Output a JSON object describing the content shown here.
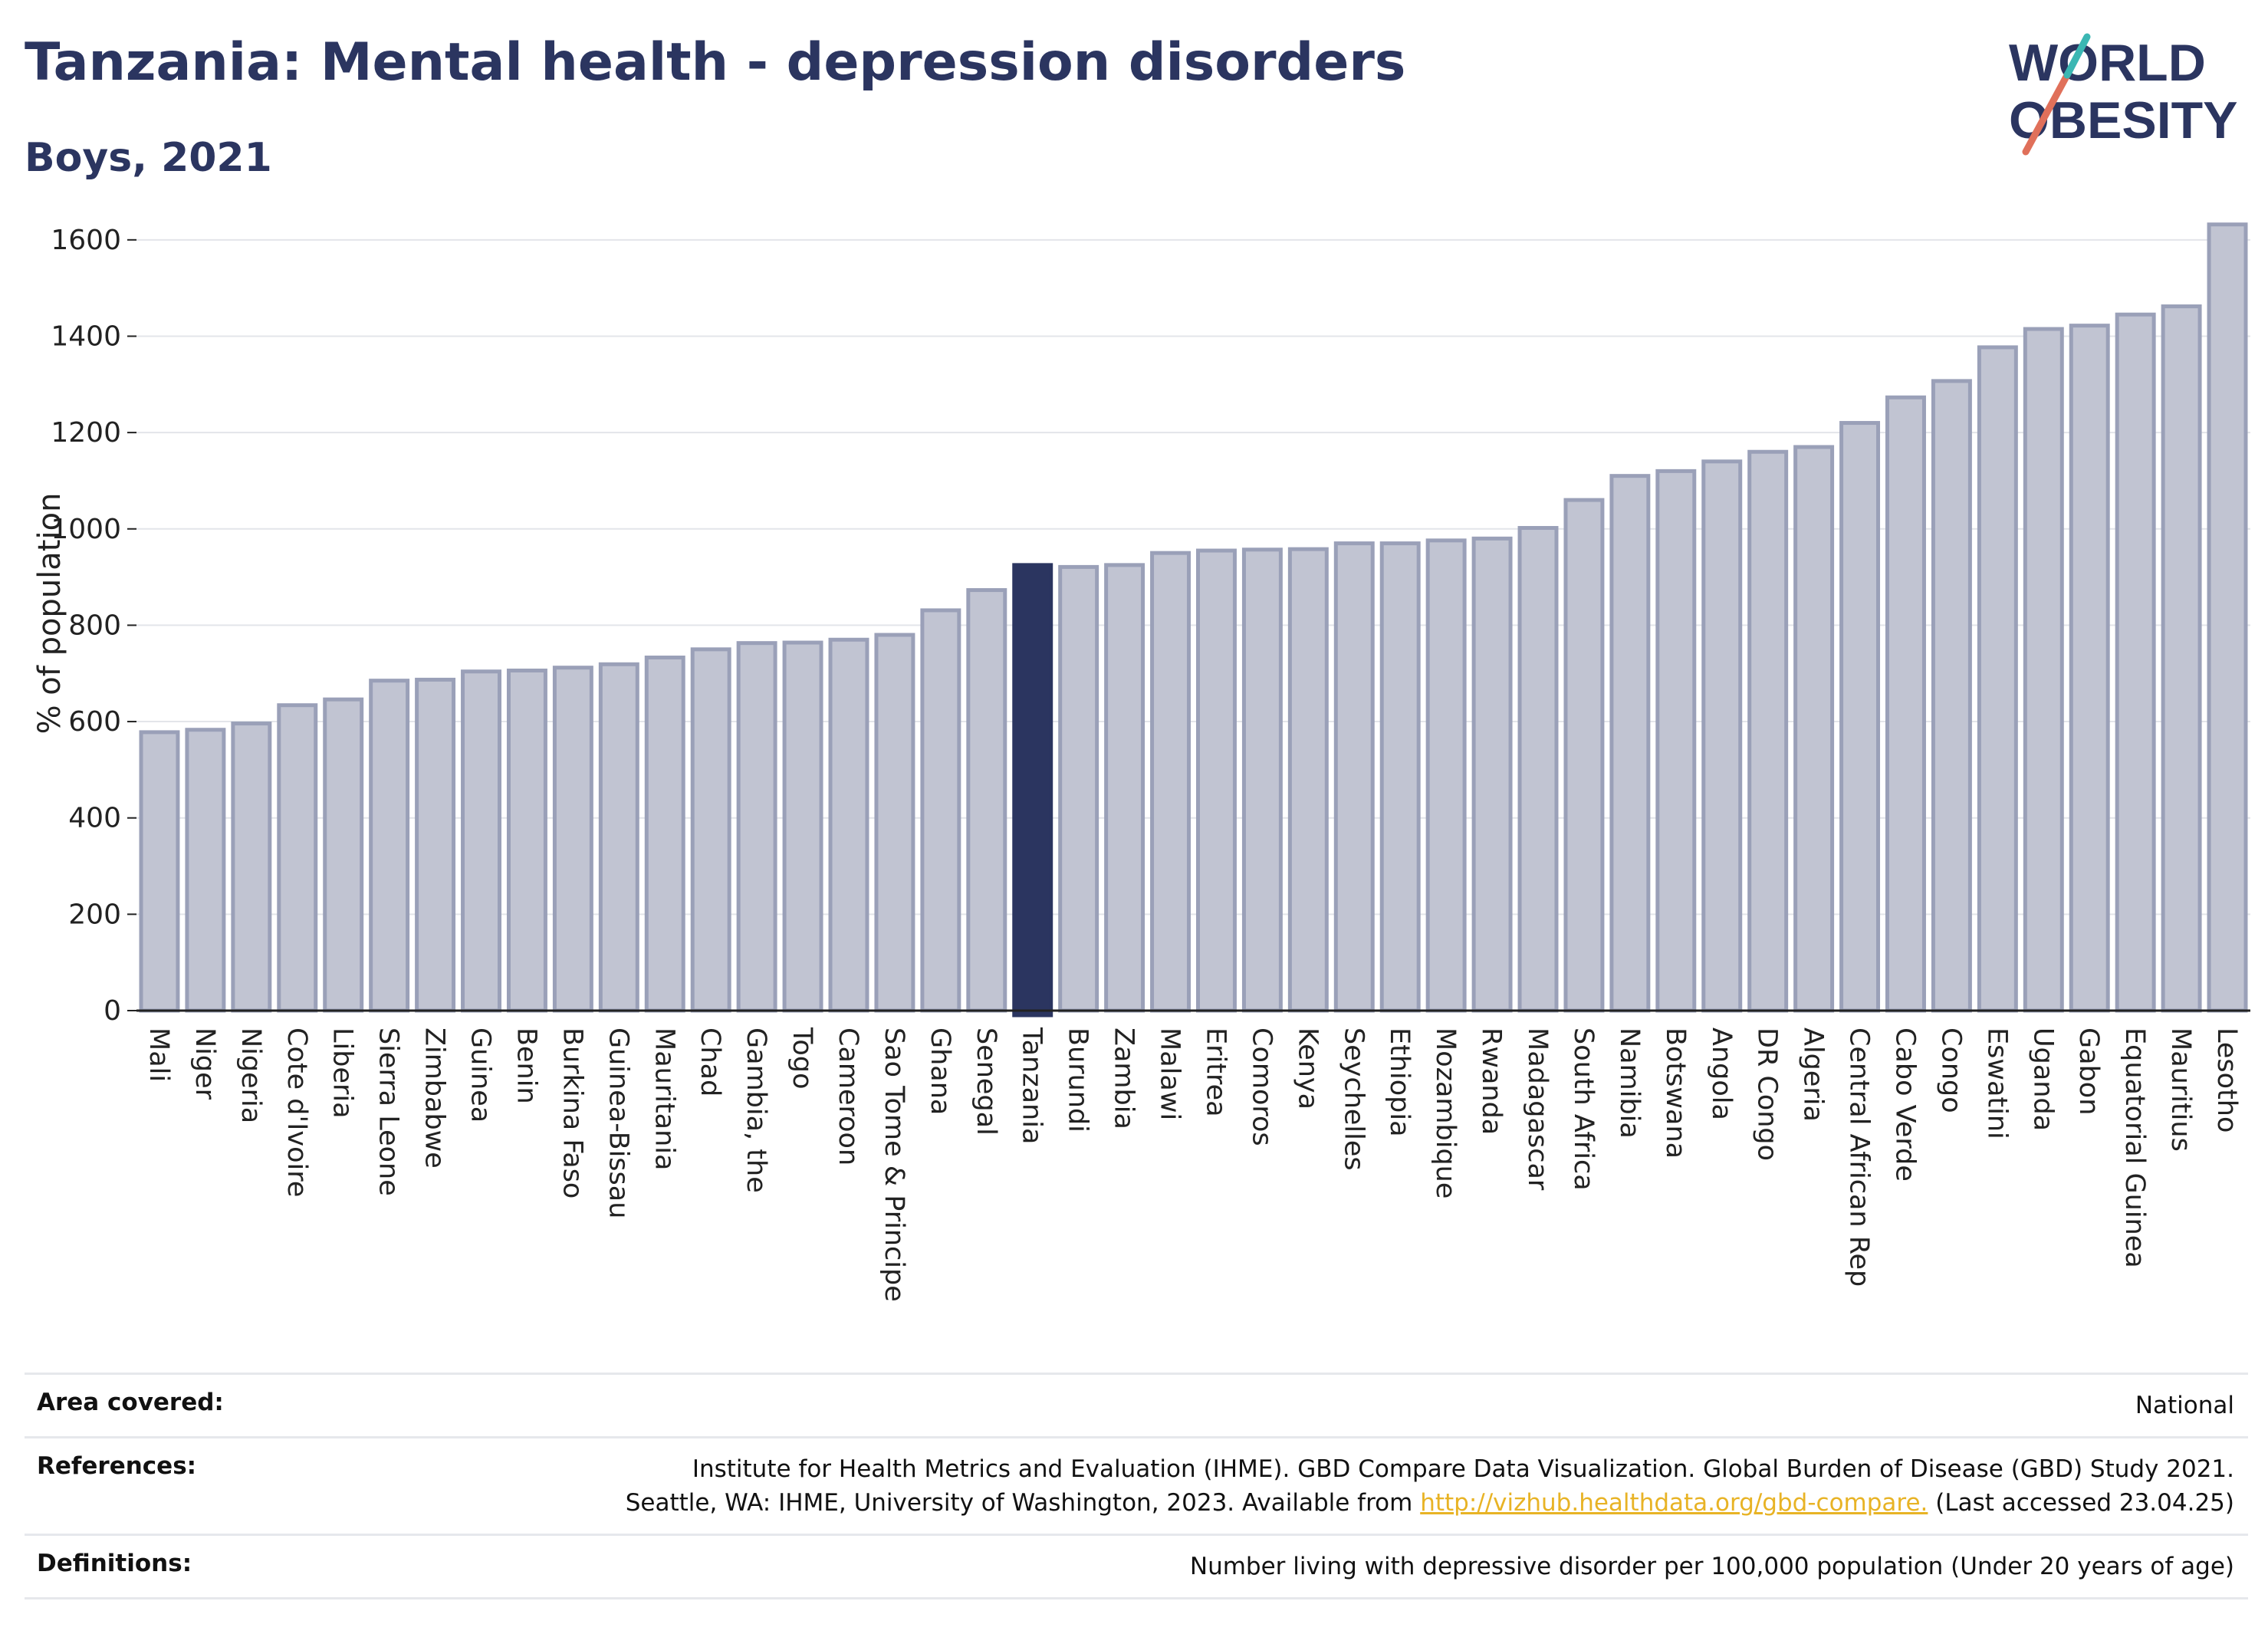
{
  "header": {
    "title": "Tanzania: Mental health - depression disorders",
    "subtitle": "Boys, 2021"
  },
  "logo": {
    "line1": "WORLD",
    "line2": "OBESITY"
  },
  "chart_data": {
    "type": "bar",
    "ylabel": "% of population",
    "ylim": [
      0,
      1700
    ],
    "yticks": [
      0,
      200,
      400,
      600,
      800,
      1000,
      1200,
      1400,
      1600
    ],
    "grid": true,
    "highlight": "Tanzania",
    "colors": {
      "bar": "#c1c4d2",
      "bar_edge": "#9aa0b8",
      "highlight": "#2b3560"
    },
    "categories": [
      "Mali",
      "Niger",
      "Nigeria",
      "Cote d'Ivoire",
      "Liberia",
      "Sierra Leone",
      "Zimbabwe",
      "Guinea",
      "Benin",
      "Burkina Faso",
      "Guinea-Bissau",
      "Mauritania",
      "Chad",
      "Gambia, the",
      "Togo",
      "Cameroon",
      "Sao Tome & Principe",
      "Ghana",
      "Senegal",
      "Tanzania",
      "Burundi",
      "Zambia",
      "Malawi",
      "Eritrea",
      "Comoros",
      "Kenya",
      "Seychelles",
      "Ethiopia",
      "Mozambique",
      "Rwanda",
      "Madagascar",
      "South Africa",
      "Namibia",
      "Botswana",
      "Angola",
      "DR Congo",
      "Algeria",
      "Central African Rep",
      "Cabo Verde",
      "Congo",
      "Eswatini",
      "Uganda",
      "Gabon",
      "Equatorial Guinea",
      "Mauritius",
      "Lesotho"
    ],
    "values": [
      578,
      583,
      596,
      634,
      646,
      685,
      687,
      704,
      706,
      712,
      719,
      733,
      750,
      763,
      764,
      770,
      780,
      831,
      873,
      925,
      921,
      925,
      950,
      955,
      957,
      958,
      970,
      970,
      976,
      980,
      1002,
      1060,
      1110,
      1120,
      1140,
      1160,
      1170,
      1220,
      1273,
      1307,
      1377,
      1415,
      1422,
      1445,
      1462,
      1632
    ]
  },
  "info": {
    "area_label": "Area covered:",
    "area_value": "National",
    "refs_label": "References:",
    "refs_line1": "Institute for Health Metrics and Evaluation (IHME). GBD Compare Data Visualization. Global Burden of Disease (GBD) Study 2021.",
    "refs_line2_pre": "Seattle, WA: IHME, University of Washington, 2023. Available from ",
    "refs_link": "http://vizhub.healthdata.org/gbd-compare.",
    "refs_line2_post": " (Last accessed 23.04.25)",
    "defs_label": "Definitions:",
    "defs_value": "Number living with depressive disorder per 100,000 population (Under 20 years of age)"
  }
}
